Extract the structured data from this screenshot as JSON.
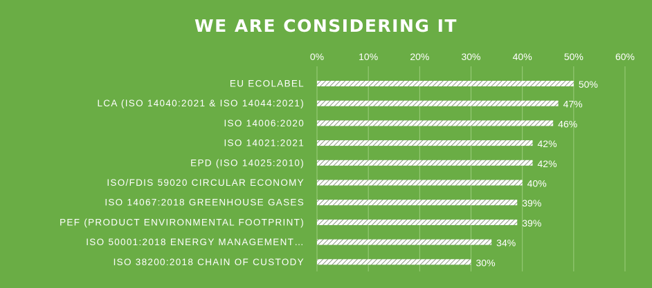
{
  "chart_data": {
    "type": "bar",
    "orientation": "horizontal",
    "title": "WE ARE CONSIDERING IT",
    "categories": [
      "EU ECOLABEL",
      "LCA (ISO 14040:2021 & ISO 14044:2021)",
      "ISO 14006:2020",
      "ISO 14021:2021",
      "EPD (ISO 14025:2010)",
      "ISO/FDIS 59020 CIRCULAR ECONOMY",
      "ISO 14067:2018 GREENHOUSE GASES",
      "PEF (PRODUCT ENVIRONMENTAL FOOTPRINT)",
      "ISO 50001:2018 ENERGY MANAGEMENT…",
      "ISO 38200:2018 CHAIN OF CUSTODY"
    ],
    "values": [
      50,
      47,
      46,
      42,
      42,
      40,
      39,
      39,
      34,
      30
    ],
    "data_labels": [
      "50%",
      "47%",
      "46%",
      "42%",
      "42%",
      "40%",
      "39%",
      "39%",
      "34%",
      "30%"
    ],
    "xlim": [
      0,
      60
    ],
    "x_ticks": [
      "0%",
      "10%",
      "20%",
      "30%",
      "40%",
      "50%",
      "60%"
    ],
    "x_axis_position": "top",
    "grid": true,
    "legend": "none",
    "colors": {
      "background": "#6aad45",
      "bar_pattern": "hatched white",
      "text": "#ffffff",
      "grid": "#9ccd7c"
    }
  }
}
